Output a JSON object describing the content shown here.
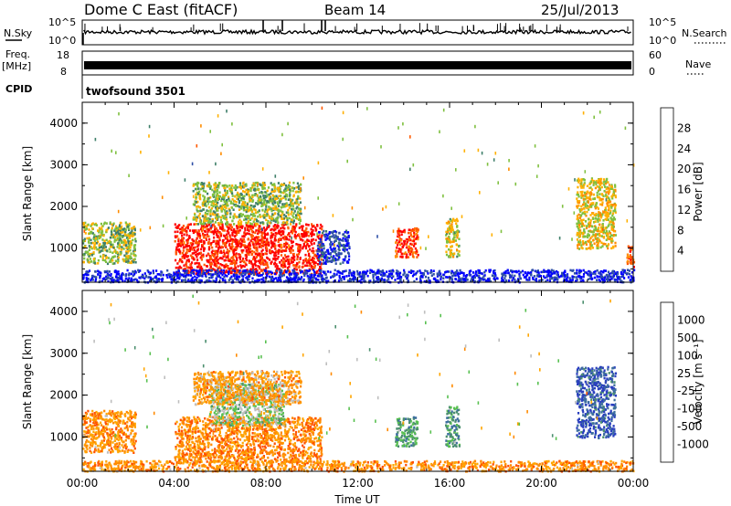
{
  "header": {
    "station": "Dome C East (fitACF)",
    "beam": "Beam 14",
    "date": "25/Jul/2013"
  },
  "status_panel": {
    "nsky_label": "N.Sky",
    "nsky_ticks": [
      "10^5",
      "10^0"
    ],
    "nsearch_label": "N.Search",
    "nsearch_ticks": [
      "10^5",
      "10^0"
    ],
    "freq_label_1": "Freq.",
    "freq_label_2": "[MHz]",
    "freq_ticks": [
      "18",
      "8"
    ],
    "nave_label": "Nave",
    "nave_ticks": [
      "60",
      "0"
    ],
    "cpid_label": "CPID",
    "cpid_value": "twofsound 3501"
  },
  "colors": {
    "power_scale": [
      "#0000ff",
      "#2e4fa6",
      "#3f7f6a",
      "#7fc040",
      "#ffb000",
      "#ff8c00",
      "#ff5a00",
      "#ff0000"
    ],
    "velocity_scale": [
      "#2a3fbf",
      "#3d6e9e",
      "#4b8f6e",
      "#58c050",
      "#bebebe",
      "#ffa500",
      "#ff8a00",
      "#ff5000",
      "#ff0000"
    ]
  },
  "chart_data": [
    {
      "type": "heatmap",
      "name": "power",
      "xlabel": "",
      "ylabel": "Slant Range [km]",
      "xlim": [
        0,
        24
      ],
      "ylim": [
        180,
        4500
      ],
      "yticks": [
        "1000",
        "2000",
        "3000",
        "4000"
      ],
      "colorbar": {
        "label": "Power [dB]",
        "ticks": [
          "4",
          "8",
          "12",
          "16",
          "20",
          "24",
          "28"
        ]
      },
      "regions": [
        {
          "t0": 0.0,
          "t1": 2.3,
          "r0": 650,
          "r1": 1650,
          "level": 0.45
        },
        {
          "t0": 4.0,
          "t1": 10.4,
          "r0": 400,
          "r1": 1600,
          "level": 0.92
        },
        {
          "t0": 4.8,
          "t1": 9.5,
          "r0": 1600,
          "r1": 2600,
          "level": 0.45
        },
        {
          "t0": 10.2,
          "t1": 11.6,
          "r0": 650,
          "r1": 1450,
          "level": 0.15
        },
        {
          "t0": 13.6,
          "t1": 14.6,
          "r0": 800,
          "r1": 1500,
          "level": 0.85
        },
        {
          "t0": 15.8,
          "t1": 16.4,
          "r0": 800,
          "r1": 1750,
          "level": 0.5
        },
        {
          "t0": 21.5,
          "t1": 23.2,
          "r0": 1000,
          "r1": 2700,
          "level": 0.55
        },
        {
          "t0": 23.7,
          "t1": 24.0,
          "r0": 550,
          "r1": 1100,
          "level": 0.75
        },
        {
          "t0": 0.0,
          "t1": 24.0,
          "r0": 200,
          "r1": 500,
          "level": 0.1
        }
      ]
    },
    {
      "type": "heatmap",
      "name": "velocity",
      "xlabel": "Time UT",
      "ylabel": "Slant Range [km]",
      "xlim": [
        0,
        24
      ],
      "ylim": [
        180,
        4500
      ],
      "yticks": [
        "1000",
        "2000",
        "3000",
        "4000"
      ],
      "xticks": [
        "00:00",
        "04:00",
        "08:00",
        "12:00",
        "16:00",
        "20:00",
        "00:00"
      ],
      "colorbar": {
        "label": "Velocity [m s⁻¹]",
        "ticks": [
          "1000",
          "500",
          "100",
          "25",
          "-25",
          "-100",
          "-500",
          "-1000"
        ]
      },
      "regions": [
        {
          "t0": 0.0,
          "t1": 2.3,
          "r0": 650,
          "r1": 1650,
          "level": 0.7
        },
        {
          "t0": 4.0,
          "t1": 10.4,
          "r0": 400,
          "r1": 1500,
          "level": 0.72
        },
        {
          "t0": 5.5,
          "t1": 8.8,
          "r0": 1300,
          "r1": 2300,
          "level": 0.45
        },
        {
          "t0": 4.8,
          "t1": 9.5,
          "r0": 1800,
          "r1": 2600,
          "level": 0.65
        },
        {
          "t0": 13.6,
          "t1": 14.6,
          "r0": 800,
          "r1": 1500,
          "level": 0.3
        },
        {
          "t0": 15.8,
          "t1": 16.4,
          "r0": 800,
          "r1": 1750,
          "level": 0.3
        },
        {
          "t0": 21.5,
          "t1": 23.2,
          "r0": 1000,
          "r1": 2700,
          "level": 0.1
        },
        {
          "t0": 0.0,
          "t1": 24.0,
          "r0": 200,
          "r1": 450,
          "level": 0.7
        }
      ]
    }
  ]
}
